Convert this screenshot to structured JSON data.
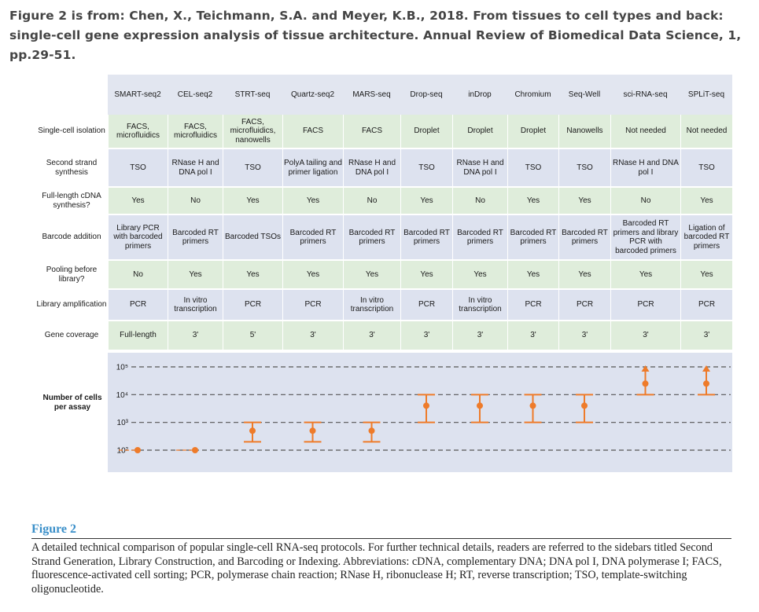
{
  "header": {
    "text": "Figure 2 is from: Chen, X., Teichmann, S.A. and Meyer, K.B., 2018. From tissues to cell types and back: single-cell gene expression analysis of tissue architecture. Annual Review of Biomedical Data Science, 1, pp.29-51."
  },
  "table": {
    "columns": [
      "SMART-seq2",
      "CEL-seq2",
      "STRT-seq",
      "Quartz-seq2",
      "MARS-seq",
      "Drop-seq",
      "inDrop",
      "Chromium",
      "Seq-Well",
      "sci-RNA-seq",
      "SPLiT-seq"
    ],
    "rows": [
      {
        "label": "Single-cell isolation",
        "shade": "green",
        "values": [
          "FACS, microfluidics",
          "FACS, microfluidics",
          "FACS, microfluidics, nanowells",
          "FACS",
          "FACS",
          "Droplet",
          "Droplet",
          "Droplet",
          "Nanowells",
          "Not needed",
          "Not needed"
        ]
      },
      {
        "label": "Second strand synthesis",
        "shade": "blue",
        "values": [
          "TSO",
          "RNase H and DNA pol I",
          "TSO",
          "PolyA tailing and primer ligation",
          "RNase H and DNA pol I",
          "TSO",
          "RNase H and DNA pol I",
          "TSO",
          "TSO",
          "RNase H and DNA pol I",
          "TSO"
        ]
      },
      {
        "label": "Full-length cDNA synthesis?",
        "shade": "green",
        "values": [
          "Yes",
          "No",
          "Yes",
          "Yes",
          "No",
          "Yes",
          "No",
          "Yes",
          "Yes",
          "No",
          "Yes"
        ]
      },
      {
        "label": "Barcode addition",
        "shade": "blue",
        "values": [
          "Library PCR with barcoded primers",
          "Barcoded RT primers",
          "Barcoded TSOs",
          "Barcoded RT primers",
          "Barcoded RT primers",
          "Barcoded RT primers",
          "Barcoded RT primers",
          "Barcoded RT primers",
          "Barcoded RT primers",
          "Barcoded RT primers and library PCR with barcoded primers",
          "Ligation of barcoded RT primers"
        ]
      },
      {
        "label": "Pooling before library?",
        "shade": "green",
        "values": [
          "No",
          "Yes",
          "Yes",
          "Yes",
          "Yes",
          "Yes",
          "Yes",
          "Yes",
          "Yes",
          "Yes",
          "Yes"
        ]
      },
      {
        "label": "Library amplification",
        "shade": "blue",
        "values": [
          "PCR",
          "In vitro transcription",
          "PCR",
          "PCR",
          "In vitro transcription",
          "PCR",
          "In vitro transcription",
          "PCR",
          "PCR",
          "PCR",
          "PCR"
        ]
      },
      {
        "label": "Gene coverage",
        "shade": "green",
        "values": [
          "Full-length",
          "3'",
          "5'",
          "3'",
          "3'",
          "3'",
          "3'",
          "3'",
          "3'",
          "3'",
          "3'"
        ]
      }
    ]
  },
  "chart": {
    "label": "Number of cells per assay",
    "tick_labels": [
      "10⁵",
      "10⁴",
      "10³",
      "10²"
    ]
  },
  "chart_data": {
    "type": "scatter",
    "yscale": "log",
    "ylim": [
      100,
      100000
    ],
    "categories": [
      "SMART-seq2",
      "CEL-seq2",
      "STRT-seq",
      "Quartz-seq2",
      "MARS-seq",
      "Drop-seq",
      "inDrop",
      "Chromium",
      "Seq-Well",
      "sci-RNA-seq",
      "SPLiT-seq"
    ],
    "points": [
      {
        "x": "SMART-seq2",
        "y": 100,
        "low": null,
        "high": null,
        "open_upper": false
      },
      {
        "x": "CEL-seq2",
        "y": 100,
        "low": null,
        "high": null,
        "open_upper": false
      },
      {
        "x": "STRT-seq",
        "y": 500,
        "low": 200,
        "high": 1000,
        "open_upper": false
      },
      {
        "x": "Quartz-seq2",
        "y": 500,
        "low": 200,
        "high": 1000,
        "open_upper": false
      },
      {
        "x": "MARS-seq",
        "y": 500,
        "low": 200,
        "high": 1000,
        "open_upper": false
      },
      {
        "x": "Drop-seq",
        "y": 4000,
        "low": 1000,
        "high": 10000,
        "open_upper": false
      },
      {
        "x": "inDrop",
        "y": 4000,
        "low": 1000,
        "high": 10000,
        "open_upper": false
      },
      {
        "x": "Chromium",
        "y": 4000,
        "low": 1000,
        "high": 10000,
        "open_upper": false
      },
      {
        "x": "Seq-Well",
        "y": 4000,
        "low": 1000,
        "high": 10000,
        "open_upper": false
      },
      {
        "x": "sci-RNA-seq",
        "y": 25000,
        "low": 10000,
        "high": 100000,
        "open_upper": true
      },
      {
        "x": "SPLiT-seq",
        "y": 25000,
        "low": 10000,
        "high": 100000,
        "open_upper": true
      }
    ],
    "colors": {
      "marker": "#ee7b2a",
      "grid": "#555555",
      "band": "#dde2ef"
    }
  },
  "caption": {
    "title": "Figure 2",
    "text": "A detailed technical comparison of popular single-cell RNA-seq protocols. For further technical details, readers are referred to the sidebars titled Second Strand Generation, Library Construction, and Barcoding or Indexing. Abbreviations: cDNA, complementary DNA; DNA pol I, DNA polymerase I; FACS, fluorescence-activated cell sorting; PCR, polymerase chain reaction; RNase H, ribonuclease H; RT, reverse transcription; TSO, template-switching oligonucleotide."
  }
}
